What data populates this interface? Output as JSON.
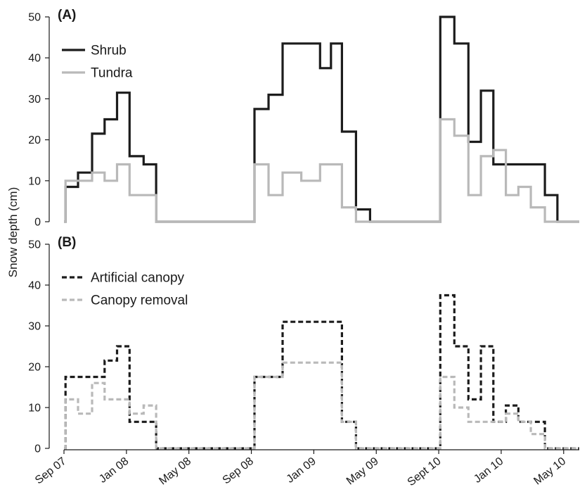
{
  "chart_data": {
    "type": "line",
    "subtype": "step",
    "ylabel": "Snow depth (cm)",
    "x_tick_labels": [
      "Sep 07",
      "Jan 08",
      "May 08",
      "Sep 08",
      "Jan 09",
      "May 09",
      "Sept 10",
      "Jan 10",
      "May 10"
    ],
    "x_tick_positions": [
      0,
      4,
      8,
      12,
      16,
      20,
      24,
      28,
      32
    ],
    "xlim": [
      0,
      33
    ],
    "panels": [
      {
        "label": "(A)",
        "ylim": [
          0,
          50
        ],
        "yticks": [
          0,
          10,
          20,
          30,
          40,
          50
        ],
        "legend_position": "top-left",
        "series": [
          {
            "name": "Shrub",
            "color": "#1c1c1c",
            "dash": "solid",
            "x": [
              0,
              0.1,
              0.9,
              1.8,
              2.6,
              3.4,
              4.2,
              5.1,
              5.9,
              6.7,
              8,
              12,
              12.2,
              13.1,
              14,
              15.2,
              16.4,
              17.1,
              17.8,
              18.7,
              19.6,
              20,
              24,
              24.1,
              25,
              25.9,
              26.7,
              27.5,
              28.3,
              29.1,
              29.9,
              30.8,
              31.6,
              32.3,
              33
            ],
            "y": [
              0,
              8.5,
              12,
              21.5,
              25,
              31.5,
              16,
              14,
              0,
              0,
              0,
              0,
              27.5,
              31,
              43.5,
              43.5,
              37.5,
              43.5,
              22,
              3,
              0,
              0,
              0,
              50,
              43.5,
              19.5,
              32,
              14,
              14,
              14,
              14,
              6.5,
              0,
              0,
              0
            ]
          },
          {
            "name": "Tundra",
            "color": "#b9b9b9",
            "dash": "solid",
            "x": [
              0,
              0.1,
              0.9,
              1.8,
              2.6,
              3.4,
              4.2,
              5.1,
              5.9,
              6.7,
              8,
              12,
              12.2,
              13.1,
              14,
              15.2,
              16.4,
              17.1,
              17.8,
              18.7,
              19.6,
              20,
              24,
              24.1,
              25,
              25.9,
              26.7,
              27.5,
              28.3,
              29.1,
              29.9,
              30.8,
              31.6,
              32.3,
              33
            ],
            "y": [
              0,
              10,
              10,
              12,
              10,
              14,
              6.5,
              6.5,
              0,
              0,
              0,
              0,
              14,
              6.5,
              12,
              10,
              14,
              14,
              3.5,
              0,
              0,
              0,
              0,
              25,
              21,
              6.5,
              16,
              17.5,
              6.5,
              8.5,
              3.5,
              0,
              0,
              0,
              0
            ]
          }
        ]
      },
      {
        "label": "(B)",
        "ylim": [
          0,
          50
        ],
        "yticks": [
          0,
          10,
          20,
          30,
          40,
          50
        ],
        "legend_position": "top-left",
        "series": [
          {
            "name": "Artificial canopy",
            "color": "#1c1c1c",
            "dash": "dashed",
            "x": [
              0,
              0.1,
              0.9,
              1.8,
              2.6,
              3.4,
              4.2,
              5.1,
              5.9,
              6.7,
              8,
              12,
              12.2,
              13.1,
              14,
              15.2,
              16.4,
              17.1,
              17.8,
              18.7,
              19.6,
              20,
              24,
              24.1,
              25,
              25.9,
              26.7,
              27.5,
              28.3,
              29.1,
              29.9,
              30.8,
              31.6,
              32.3,
              33
            ],
            "y": [
              0,
              17.5,
              17.5,
              17.5,
              21.5,
              25,
              6.5,
              6.5,
              0,
              0,
              0,
              0,
              17.5,
              17.5,
              31,
              31,
              31,
              31,
              6.5,
              0,
              0,
              0,
              0,
              37.5,
              25,
              12,
              25,
              6.5,
              10.5,
              6.5,
              6.5,
              0,
              0,
              0,
              0
            ]
          },
          {
            "name": "Canopy removal",
            "color": "#b9b9b9",
            "dash": "dashed",
            "x": [
              0,
              0.1,
              0.9,
              1.8,
              2.6,
              3.4,
              4.2,
              5.1,
              5.9,
              6.7,
              8,
              12,
              12.2,
              13.1,
              14,
              15.2,
              16.4,
              17.1,
              17.8,
              18.7,
              19.6,
              20,
              24,
              24.1,
              25,
              25.9,
              26.7,
              27.5,
              28.3,
              29.1,
              29.9,
              30.8,
              31.6,
              32.3,
              33
            ],
            "y": [
              0,
              12,
              8.5,
              16,
              12,
              12,
              8.5,
              10.5,
              0,
              0,
              0,
              0,
              17.5,
              17.5,
              21,
              21,
              21,
              21,
              6.5,
              0,
              0,
              0,
              0,
              17.5,
              10,
              6.5,
              6.5,
              6.5,
              8.5,
              6.5,
              3.5,
              0,
              0,
              0,
              0
            ]
          }
        ]
      }
    ]
  }
}
